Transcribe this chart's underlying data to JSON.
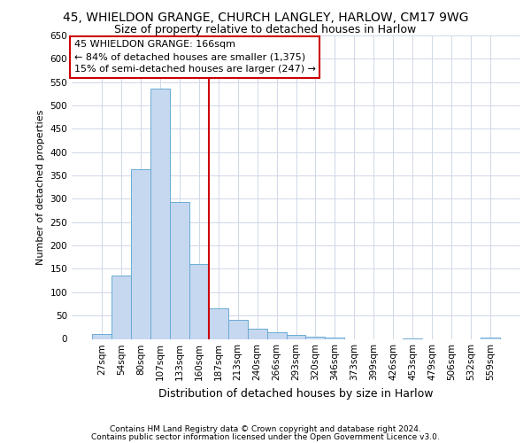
{
  "title1": "45, WHIELDON GRANGE, CHURCH LANGLEY, HARLOW, CM17 9WG",
  "title2": "Size of property relative to detached houses in Harlow",
  "xlabel": "Distribution of detached houses by size in Harlow",
  "ylabel": "Number of detached properties",
  "footer1": "Contains HM Land Registry data © Crown copyright and database right 2024.",
  "footer2": "Contains public sector information licensed under the Open Government Licence v3.0.",
  "categories": [
    "27sqm",
    "54sqm",
    "80sqm",
    "107sqm",
    "133sqm",
    "160sqm",
    "187sqm",
    "213sqm",
    "240sqm",
    "266sqm",
    "293sqm",
    "320sqm",
    "346sqm",
    "373sqm",
    "399sqm",
    "426sqm",
    "453sqm",
    "479sqm",
    "506sqm",
    "532sqm",
    "559sqm"
  ],
  "values": [
    10,
    135,
    363,
    537,
    293,
    160,
    65,
    40,
    22,
    14,
    8,
    5,
    2,
    0,
    0,
    0,
    1,
    0,
    0,
    0,
    2
  ],
  "bar_color": "#c5d8f0",
  "bar_edge_color": "#6aaad4",
  "grid_color": "#d0d8e8",
  "bg_color": "#ffffff",
  "vline_x": 5.5,
  "vline_color": "#cc0000",
  "annotation_text": "45 WHIELDON GRANGE: 166sqm\n← 84% of detached houses are smaller (1,375)\n15% of semi-detached houses are larger (247) →",
  "annotation_box_color": "#cc0000",
  "ylim": [
    0,
    650
  ],
  "yticks": [
    0,
    50,
    100,
    150,
    200,
    250,
    300,
    350,
    400,
    450,
    500,
    550,
    600,
    650
  ],
  "title1_fontsize": 10,
  "title2_fontsize": 9,
  "ylabel_fontsize": 8,
  "xlabel_fontsize": 9,
  "tick_fontsize": 7.5,
  "footer_fontsize": 6.5
}
